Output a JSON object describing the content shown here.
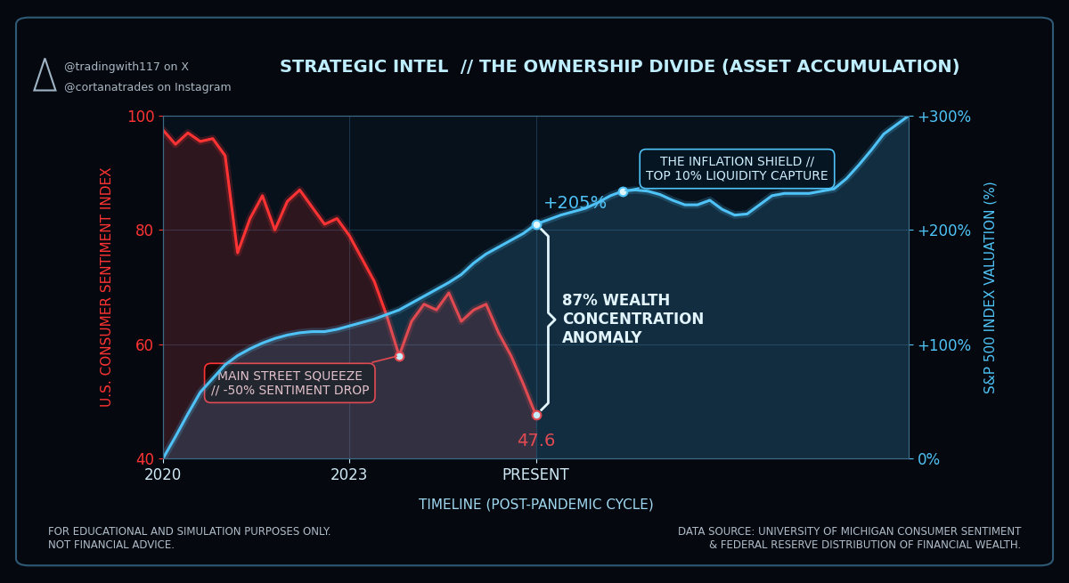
{
  "chart_data": {
    "type": "line",
    "title": "STRATEGIC INTEL  // THE OWNERSHIP DIVIDE (ASSET ACCUMULATION)",
    "handles": [
      "@tradingwith117 on X",
      "@cortanatrades on Instagram"
    ],
    "x_label": "TIMELINE (POST-PANDEMIC CYCLE)",
    "y_label": "U.S. CONSUMER SENTIMENT INDEX",
    "y2_label": "S&P 500 INDEX VALUATION (%)",
    "categories": [
      "2020",
      null,
      null,
      null,
      null,
      null,
      null,
      null,
      null,
      null,
      null,
      null,
      null,
      null,
      null,
      "2023",
      null,
      null,
      null,
      null,
      null,
      null,
      null,
      null,
      null,
      null,
      null,
      null,
      null,
      null,
      "PRESENT",
      null,
      null,
      null,
      null,
      null,
      null,
      null,
      null,
      null,
      null,
      null,
      null,
      null,
      null,
      null,
      null,
      null,
      null,
      null,
      null,
      null,
      null,
      null,
      null,
      null,
      null,
      null,
      null,
      null,
      null
    ],
    "series": [
      {
        "color": "#ff3333",
        "values": [
          97.5,
          95,
          97,
          95.5,
          96,
          93,
          76,
          82,
          86,
          80,
          85,
          87,
          84,
          81,
          82,
          79,
          75,
          71,
          65,
          58,
          64,
          67,
          66,
          69,
          64,
          66,
          67,
          62,
          58,
          53,
          47.6,
          null,
          null,
          null,
          null,
          null,
          null,
          null,
          null,
          null,
          null,
          null,
          null,
          null,
          null,
          null,
          null,
          null,
          null,
          null,
          null,
          null,
          null,
          null,
          null,
          null,
          null,
          null,
          null,
          null,
          null
        ],
        "value_labels": [
          null,
          null,
          null,
          null,
          null,
          null,
          null,
          null,
          null,
          null,
          null,
          null,
          null,
          null,
          null,
          null,
          null,
          null,
          null,
          null,
          null,
          null,
          null,
          null,
          null,
          null,
          null,
          null,
          null,
          null,
          "47.6",
          null,
          null,
          null,
          null,
          null,
          null,
          null,
          null,
          null,
          null,
          null,
          null,
          null,
          null,
          null,
          null,
          null,
          null,
          null,
          null,
          null,
          null,
          null,
          null,
          null,
          null,
          null,
          null,
          null,
          null
        ]
      },
      {
        "color": "#4fc3f7",
        "axis": "y2",
        "values": [
          0,
          19,
          39,
          58,
          70,
          82,
          90,
          96,
          101,
          105,
          108,
          110,
          111,
          111,
          113,
          116,
          119,
          122,
          126,
          130,
          136,
          142,
          148,
          154,
          161,
          171,
          179,
          185,
          191,
          197,
          205,
          209,
          213,
          216,
          219,
          224,
          230,
          234,
          235,
          234,
          231,
          226,
          222,
          222,
          226,
          218,
          213,
          214,
          222,
          230,
          232,
          232,
          232,
          234,
          236,
          245,
          257,
          270,
          284,
          292,
          300
        ],
        "value_labels": [
          null,
          null,
          null,
          null,
          null,
          null,
          null,
          null,
          null,
          null,
          null,
          null,
          null,
          null,
          null,
          null,
          null,
          null,
          null,
          null,
          null,
          null,
          null,
          null,
          null,
          null,
          null,
          null,
          null,
          null,
          "+205%",
          null,
          null,
          null,
          null,
          null,
          null,
          null,
          null,
          null,
          null,
          null,
          null,
          null,
          null,
          null,
          null,
          null,
          null,
          null,
          null,
          null,
          null,
          null,
          null,
          null,
          null,
          null,
          null,
          null,
          null
        ]
      }
    ],
    "ylim": [
      40,
      100
    ],
    "yticks": [
      40,
      60,
      80,
      100
    ],
    "y2lim": [
      0,
      300
    ],
    "y2ticks": [
      {
        "value": 0,
        "label": "0%"
      },
      {
        "value": 100,
        "label": "+100%"
      },
      {
        "value": 200,
        "label": "+200%"
      },
      {
        "value": 300,
        "label": "+300%"
      }
    ],
    "grid": true,
    "annotations": [
      {
        "text": "MAIN STREET SQUEEZE\n// -50% SENTIMENT DROP",
        "x": 19,
        "axis": "y"
      },
      {
        "text": "THE INFLATION SHIELD //\nTOP 10% LIQUIDITY CAPTURE",
        "x": 37,
        "axis": "y2"
      }
    ],
    "brace_annotation": {
      "text": "87% WEALTH\nCONCENTRATION\nANOMALY",
      "x": 30
    },
    "footnote": "FOR EDUCATIONAL AND SIMULATION PURPOSES ONLY.\nNOT FINANCIAL ADVICE.",
    "source": "DATA SOURCE: UNIVERSITY OF MICHIGAN CONSUMER SENTIMENT\n& FEDERAL RESERVE DISTRIBUTION OF FINANCIAL WEALTH."
  }
}
